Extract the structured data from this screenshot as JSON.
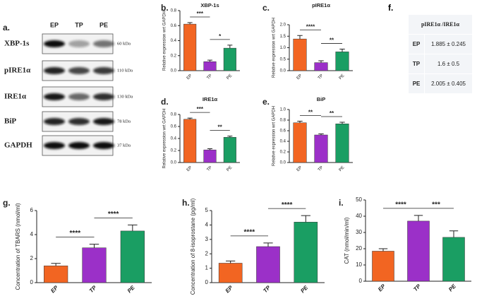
{
  "blot": {
    "label": "a.",
    "lanes": [
      "EP",
      "TP",
      "PE"
    ],
    "rows": [
      {
        "protein": "XBP-1s",
        "size": "60 kDa"
      },
      {
        "protein": "pIRE1α",
        "size": "110 kDa"
      },
      {
        "protein": "IRE1α",
        "size": "130 kDa"
      },
      {
        "protein": "BiP",
        "size": "78 kDa"
      },
      {
        "protein": "GAPDH",
        "size": "37 kDa"
      }
    ]
  },
  "table": {
    "label": "f.",
    "header": "pIRE1α /IRE1α",
    "rows": [
      [
        "EP",
        "1.885 ± 0.245"
      ],
      [
        "TP",
        "1.6 ± 0.5"
      ],
      [
        "PE",
        "2.005 ± 0.405"
      ]
    ]
  },
  "chart_data": [
    {
      "type": "bar",
      "label": "b.",
      "title": "XBP-1s",
      "y_label": "Relative expression wrt GAPDH",
      "categories": [
        "EP",
        "TP",
        "PE"
      ],
      "values": [
        0.62,
        0.12,
        0.3
      ],
      "errors": [
        0.02,
        0.02,
        0.04
      ],
      "colors": [
        "#f26522",
        "#9b30c8",
        "#1a9e63"
      ],
      "ylim": [
        0,
        0.8
      ],
      "yticks": [
        {
          "value": 0,
          "label": "0.0"
        },
        0.2,
        0.4,
        0.6,
        0.8
      ],
      "annotations": [
        {
          "text": "***",
          "from": 0,
          "to": 1
        },
        {
          "text": "*",
          "from": 1,
          "to": 2
        }
      ]
    },
    {
      "type": "bar",
      "label": "c.",
      "title": "pIRE1α",
      "y_label": "Relative expression wrt GAPDH",
      "categories": [
        "EP",
        "TP",
        "PE"
      ],
      "values": [
        1.38,
        0.35,
        0.82
      ],
      "errors": [
        0.15,
        0.08,
        0.12
      ],
      "colors": [
        "#f26522",
        "#9b30c8",
        "#1a9e63"
      ],
      "ylim": [
        0,
        2
      ],
      "yticks": [
        {
          "value": 0,
          "label": "0.0"
        },
        0.5,
        {
          "value": 1,
          "label": "1.0"
        },
        1.5,
        {
          "value": 2,
          "label": "2.0"
        }
      ],
      "annotations": [
        {
          "text": "****",
          "from": 0,
          "to": 1
        },
        {
          "text": "**",
          "from": 1,
          "to": 2
        }
      ]
    },
    {
      "type": "bar",
      "label": "d.",
      "title": "IRE1α",
      "y_label": "Relative expression wrt GAPDH",
      "categories": [
        "EP",
        "TP",
        "PE"
      ],
      "values": [
        0.72,
        0.21,
        0.42
      ],
      "errors": [
        0.02,
        0.02,
        0.02
      ],
      "colors": [
        "#f26522",
        "#9b30c8",
        "#1a9e63"
      ],
      "ylim": [
        0,
        0.8
      ],
      "yticks": [
        {
          "value": 0,
          "label": "0.0"
        },
        0.2,
        0.4,
        0.6,
        0.8
      ],
      "annotations": [
        {
          "text": "***",
          "from": 0,
          "to": 1
        },
        {
          "text": "**",
          "from": 1,
          "to": 2
        }
      ]
    },
    {
      "type": "bar",
      "label": "e.",
      "title": "BiP",
      "y_label": "Relative expression wrt GAPDH",
      "categories": [
        "EP",
        "TP",
        "PE"
      ],
      "values": [
        0.75,
        0.52,
        0.73
      ],
      "errors": [
        0.03,
        0.02,
        0.03
      ],
      "colors": [
        "#f26522",
        "#9b30c8",
        "#1a9e63"
      ],
      "ylim": [
        0,
        1
      ],
      "yticks": [
        {
          "value": 0,
          "label": "0.0"
        },
        0.2,
        0.4,
        0.6,
        0.8,
        {
          "value": 1,
          "label": "1.0"
        }
      ],
      "annotations": [
        {
          "text": "**",
          "from": 0,
          "to": 1
        },
        {
          "text": "**",
          "from": 1,
          "to": 2
        }
      ]
    },
    {
      "type": "bar",
      "label": "g.",
      "y_label": "Concentration of TBARS (nmol/ml)",
      "categories": [
        "EP",
        "TP",
        "PE"
      ],
      "values": [
        1.4,
        2.9,
        4.3
      ],
      "errors": [
        0.2,
        0.3,
        0.5
      ],
      "colors": [
        "#f26522",
        "#9b30c8",
        "#1a9e63"
      ],
      "ylim": [
        0,
        6
      ],
      "yticks": [
        0,
        2,
        4,
        6
      ],
      "annotations": [
        {
          "text": "****",
          "from": 0,
          "to": 1
        },
        {
          "text": "****",
          "from": 1,
          "to": 2
        }
      ]
    },
    {
      "type": "bar",
      "label": "h.",
      "y_label": "Concentration of 8-isoprostane (pg/ml)",
      "categories": [
        "EP",
        "TP",
        "PE"
      ],
      "values": [
        1.35,
        2.5,
        4.2
      ],
      "errors": [
        0.15,
        0.25,
        0.45
      ],
      "colors": [
        "#f26522",
        "#9b30c8",
        "#1a9e63"
      ],
      "ylim": [
        0,
        5
      ],
      "yticks": [
        0,
        1,
        2,
        3,
        4,
        5
      ],
      "annotations": [
        {
          "text": "****",
          "from": 0,
          "to": 1
        },
        {
          "text": "****",
          "from": 1,
          "to": 2
        }
      ]
    },
    {
      "type": "bar",
      "label": "i.",
      "y_label": "CAT (nmol/min/ml)",
      "categories": [
        "EP",
        "TP",
        "PE"
      ],
      "values": [
        18.5,
        37,
        27
      ],
      "errors": [
        1.5,
        3.5,
        4
      ],
      "colors": [
        "#f26522",
        "#9b30c8",
        "#1a9e63"
      ],
      "ylim": [
        0,
        50
      ],
      "yticks": [
        0,
        10,
        20,
        30,
        40,
        50
      ],
      "annotations": [
        {
          "text": "****",
          "from": 0,
          "to": 1
        },
        {
          "text": "***",
          "from": 1,
          "to": 2
        }
      ]
    }
  ]
}
